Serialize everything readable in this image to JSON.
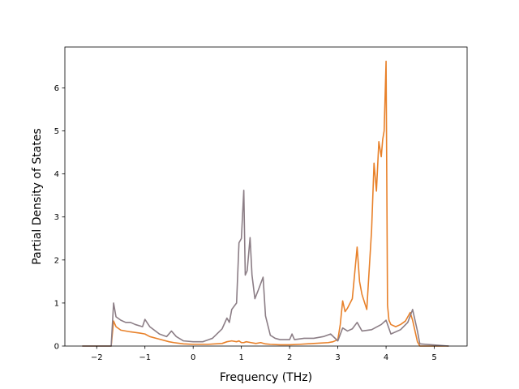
{
  "chart_data": {
    "type": "line",
    "title": "",
    "xlabel": "Frequency (THz)",
    "ylabel": "Partial Density of States",
    "xlim": [
      -2.66,
      5.68
    ],
    "ylim": [
      0,
      6.95
    ],
    "xticks": [
      -2,
      -1,
      0,
      1,
      2,
      3,
      4,
      5
    ],
    "yticks": [
      0,
      1,
      2,
      3,
      4,
      5,
      6
    ],
    "grid": false,
    "legend": "none",
    "series": [
      {
        "color": "#e8812a",
        "x": [
          -2.3,
          -1.7,
          -1.65,
          -1.6,
          -1.5,
          -1.3,
          -1.1,
          -1.0,
          -0.9,
          -0.7,
          -0.5,
          -0.4,
          -0.2,
          0.0,
          0.3,
          0.6,
          0.7,
          0.8,
          0.9,
          0.95,
          1.0,
          1.05,
          1.1,
          1.2,
          1.3,
          1.4,
          1.5,
          1.6,
          1.8,
          2.0,
          2.2,
          2.5,
          2.8,
          2.9,
          3.0,
          3.05,
          3.1,
          3.15,
          3.2,
          3.3,
          3.4,
          3.45,
          3.5,
          3.6,
          3.7,
          3.75,
          3.8,
          3.85,
          3.9,
          3.93,
          3.96,
          4.0,
          4.03,
          4.06,
          4.1,
          4.2,
          4.3,
          4.4,
          4.5,
          4.55,
          4.6,
          4.65,
          4.7,
          5.3
        ],
        "values": [
          0,
          0,
          0.58,
          0.45,
          0.37,
          0.33,
          0.3,
          0.28,
          0.22,
          0.16,
          0.1,
          0.08,
          0.05,
          0.04,
          0.04,
          0.06,
          0.1,
          0.12,
          0.1,
          0.12,
          0.08,
          0.08,
          0.1,
          0.08,
          0.06,
          0.08,
          0.05,
          0.04,
          0.03,
          0.03,
          0.04,
          0.06,
          0.08,
          0.1,
          0.15,
          0.5,
          1.05,
          0.8,
          0.88,
          1.1,
          2.3,
          1.5,
          1.2,
          0.85,
          2.7,
          4.25,
          3.6,
          4.75,
          4.4,
          4.8,
          5.0,
          6.62,
          0.95,
          0.6,
          0.5,
          0.45,
          0.5,
          0.58,
          0.78,
          0.6,
          0.35,
          0.1,
          0,
          0
        ]
      },
      {
        "color": "#8c7e86",
        "x": [
          -2.3,
          -1.7,
          -1.65,
          -1.6,
          -1.5,
          -1.4,
          -1.3,
          -1.2,
          -1.05,
          -1.0,
          -0.9,
          -0.7,
          -0.55,
          -0.45,
          -0.35,
          -0.2,
          0.0,
          0.2,
          0.4,
          0.6,
          0.7,
          0.75,
          0.8,
          0.9,
          0.95,
          1.0,
          1.05,
          1.08,
          1.12,
          1.18,
          1.22,
          1.28,
          1.35,
          1.45,
          1.5,
          1.6,
          1.7,
          1.8,
          2.0,
          2.05,
          2.1,
          2.3,
          2.5,
          2.7,
          2.85,
          3.0,
          3.1,
          3.2,
          3.3,
          3.4,
          3.5,
          3.7,
          3.9,
          4.0,
          4.1,
          4.3,
          4.45,
          4.55,
          4.6,
          4.65,
          4.7,
          5.3
        ],
        "values": [
          0,
          0,
          1.0,
          0.68,
          0.6,
          0.55,
          0.55,
          0.5,
          0.45,
          0.62,
          0.45,
          0.28,
          0.22,
          0.35,
          0.22,
          0.12,
          0.1,
          0.1,
          0.18,
          0.4,
          0.65,
          0.55,
          0.85,
          1.0,
          2.4,
          2.5,
          3.62,
          1.65,
          1.75,
          2.52,
          1.65,
          1.1,
          1.3,
          1.6,
          0.7,
          0.25,
          0.18,
          0.15,
          0.15,
          0.28,
          0.15,
          0.18,
          0.18,
          0.22,
          0.28,
          0.12,
          0.42,
          0.35,
          0.4,
          0.55,
          0.35,
          0.38,
          0.5,
          0.6,
          0.28,
          0.38,
          0.55,
          0.85,
          0.6,
          0.35,
          0.05,
          0
        ]
      }
    ]
  }
}
